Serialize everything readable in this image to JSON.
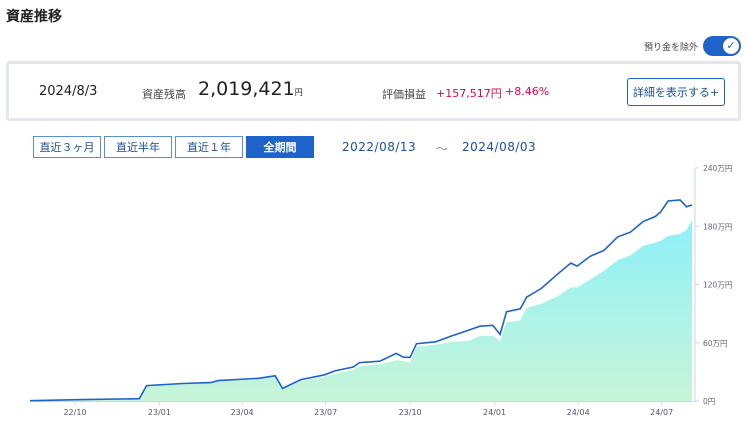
{
  "title": "資産推移",
  "toggle": {
    "label": "預り金を除外",
    "checked": true
  },
  "summary": {
    "date": "2024/8/3",
    "balance_label": "資産残高",
    "balance": "2,019,421",
    "balance_unit": "円",
    "pl_label": "評価損益",
    "pl_amount": "+157,517円",
    "pl_percent": "+8.46%",
    "detail_button": "詳細を表示する+"
  },
  "periods": [
    {
      "label": "直近３ヶ月",
      "active": false
    },
    {
      "label": "直近半年",
      "active": false
    },
    {
      "label": "直近１年",
      "active": false
    },
    {
      "label": "全期間",
      "active": true
    }
  ],
  "range": {
    "start": "2022/08/13",
    "sep": "～",
    "end": "2024/08/03"
  },
  "colors": {
    "accent": "#1e63c9",
    "gain": "#e5004f",
    "area_top": "#8ef0f8",
    "area_bottom": "#c8f5d8"
  },
  "chart_data": {
    "type": "line",
    "y_unit": "万円",
    "ylim": [
      0,
      240
    ],
    "y_ticks": [
      "0円",
      "60万円",
      "120万円",
      "180万円",
      "240万円"
    ],
    "x_ticks": [
      "22/10",
      "23/01",
      "23/04",
      "23/07",
      "23/10",
      "24/01",
      "24/04",
      "24/07"
    ],
    "x_tick_dates": [
      "2022-10-01",
      "2023-01-01",
      "2023-04-01",
      "2023-07-01",
      "2023-10-01",
      "2024-01-01",
      "2024-04-01",
      "2024-07-01"
    ],
    "series": [
      {
        "kind": "line",
        "values": [
          [
            "2022-08-13",
            0.3
          ],
          [
            "2022-10-09",
            1.4
          ],
          [
            "2022-12-10",
            2.4
          ],
          [
            "2022-12-18",
            15.9
          ],
          [
            "2023-01-26",
            18
          ],
          [
            "2023-02-26",
            19
          ],
          [
            "2023-03-06",
            21
          ],
          [
            "2023-04-19",
            23.4
          ],
          [
            "2023-05-07",
            26
          ],
          [
            "2023-05-15",
            13
          ],
          [
            "2023-06-04",
            22
          ],
          [
            "2023-06-30",
            27
          ],
          [
            "2023-07-11",
            31
          ],
          [
            "2023-07-31",
            35
          ],
          [
            "2023-08-07",
            39.6
          ],
          [
            "2023-08-29",
            41
          ],
          [
            "2023-09-16",
            49
          ],
          [
            "2023-09-24",
            45
          ],
          [
            "2023-10-01",
            45
          ],
          [
            "2023-10-08",
            59
          ],
          [
            "2023-10-29",
            61
          ],
          [
            "2023-11-15",
            67
          ],
          [
            "2023-12-04",
            73
          ],
          [
            "2023-12-16",
            77
          ],
          [
            "2023-12-30",
            78
          ],
          [
            "2024-01-07",
            68.6
          ],
          [
            "2024-01-14",
            92
          ],
          [
            "2024-01-29",
            95
          ],
          [
            "2024-02-05",
            107
          ],
          [
            "2024-02-21",
            116
          ],
          [
            "2024-03-10",
            131
          ],
          [
            "2024-03-24",
            142
          ],
          [
            "2024-03-31",
            139
          ],
          [
            "2024-04-14",
            149
          ],
          [
            "2024-04-29",
            155
          ],
          [
            "2024-05-14",
            169
          ],
          [
            "2024-05-28",
            174
          ],
          [
            "2024-06-11",
            185
          ],
          [
            "2024-06-24",
            190
          ],
          [
            "2024-06-30",
            195
          ],
          [
            "2024-07-08",
            206
          ],
          [
            "2024-07-21",
            207
          ],
          [
            "2024-07-28",
            200
          ],
          [
            "2024-08-03",
            201.9
          ]
        ]
      },
      {
        "kind": "area",
        "values": [
          [
            "2022-08-13",
            0.3
          ],
          [
            "2022-10-09",
            1.3
          ],
          [
            "2022-12-10",
            2.3
          ],
          [
            "2022-12-18",
            15.5
          ],
          [
            "2023-01-26",
            17.5
          ],
          [
            "2023-02-26",
            18.5
          ],
          [
            "2023-03-06",
            20.5
          ],
          [
            "2023-04-19",
            23
          ],
          [
            "2023-05-07",
            25
          ],
          [
            "2023-05-15",
            12.5
          ],
          [
            "2023-06-04",
            21
          ],
          [
            "2023-06-30",
            25
          ],
          [
            "2023-07-11",
            28
          ],
          [
            "2023-07-31",
            32
          ],
          [
            "2023-08-07",
            36
          ],
          [
            "2023-08-29",
            38
          ],
          [
            "2023-09-16",
            42
          ],
          [
            "2023-09-24",
            41
          ],
          [
            "2023-10-01",
            40
          ],
          [
            "2023-10-08",
            56
          ],
          [
            "2023-10-29",
            58
          ],
          [
            "2023-11-15",
            61
          ],
          [
            "2023-12-04",
            62
          ],
          [
            "2023-12-16",
            67
          ],
          [
            "2023-12-30",
            67
          ],
          [
            "2024-01-07",
            62
          ],
          [
            "2024-01-14",
            81
          ],
          [
            "2024-01-29",
            83
          ],
          [
            "2024-02-05",
            96
          ],
          [
            "2024-02-21",
            100
          ],
          [
            "2024-03-10",
            108
          ],
          [
            "2024-03-24",
            117
          ],
          [
            "2024-03-31",
            117
          ],
          [
            "2024-04-14",
            125
          ],
          [
            "2024-04-29",
            134
          ],
          [
            "2024-05-14",
            145
          ],
          [
            "2024-05-28",
            150
          ],
          [
            "2024-06-11",
            160
          ],
          [
            "2024-06-24",
            163
          ],
          [
            "2024-06-30",
            165
          ],
          [
            "2024-07-08",
            170
          ],
          [
            "2024-07-21",
            172
          ],
          [
            "2024-07-28",
            176
          ],
          [
            "2024-08-03",
            186.2
          ]
        ]
      }
    ]
  }
}
